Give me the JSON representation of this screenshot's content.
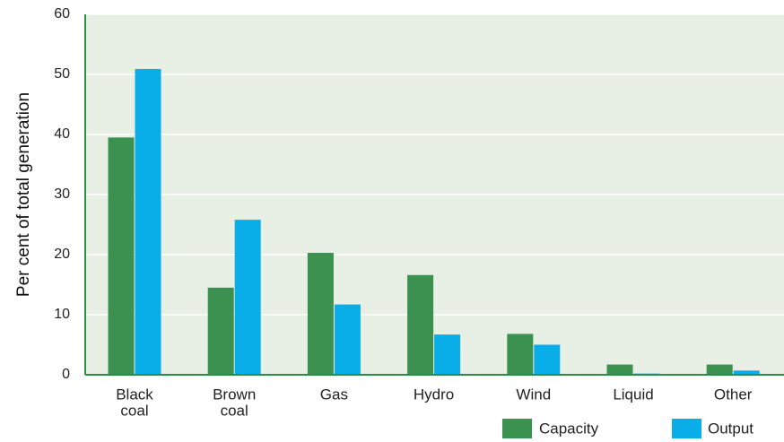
{
  "chart_data": {
    "type": "bar",
    "categories": [
      [
        "Black",
        "coal"
      ],
      [
        "Brown",
        "coal"
      ],
      [
        "Gas"
      ],
      [
        "Hydro"
      ],
      [
        "Wind"
      ],
      [
        "Liquid"
      ],
      [
        "Other"
      ]
    ],
    "series": [
      {
        "name": "Capacity",
        "color": "#3a9150",
        "values": [
          39.5,
          14.5,
          20.3,
          16.6,
          6.8,
          1.7,
          1.7
        ]
      },
      {
        "name": "Output",
        "color": "#09aee8",
        "values": [
          50.9,
          25.8,
          11.7,
          6.7,
          5.0,
          0.2,
          0.7
        ]
      }
    ],
    "ylabel": "Per cent of total generation",
    "ylim": [
      0,
      60
    ],
    "yticks": [
      0,
      10,
      20,
      30,
      40,
      50,
      60
    ],
    "grid": true,
    "legend_position": "bottom-right",
    "plot_background": "#e8efe4",
    "grid_color": "#ffffff",
    "axis_color": "#2f8a45"
  }
}
